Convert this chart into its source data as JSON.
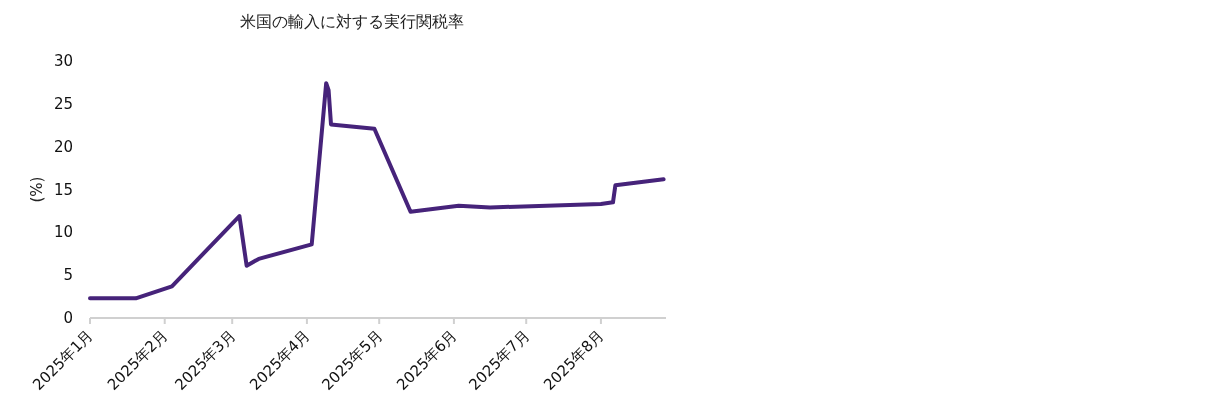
{
  "chart_data": {
    "type": "line",
    "title": "米国の輸入に対する実行関税率",
    "ylabel": "(%)",
    "x": [
      "2025-01-01",
      "2025-01-20",
      "2025-02-04",
      "2025-03-04",
      "2025-03-07",
      "2025-03-12",
      "2025-04-03",
      "2025-04-09",
      "2025-04-10",
      "2025-04-11",
      "2025-04-29",
      "2025-05-14",
      "2025-06-03",
      "2025-06-16",
      "2025-08-01",
      "2025-08-06",
      "2025-08-07",
      "2025-08-27"
    ],
    "series": [
      {
        "color": "#46237a",
        "values": [
          2.3,
          2.3,
          3.7,
          11.9,
          6.1,
          6.9,
          8.6,
          27.4,
          26.6,
          22.6,
          22.1,
          12.4,
          13.1,
          12.9,
          13.3,
          13.5,
          15.5,
          16.2
        ]
      }
    ],
    "xlim": [
      "2025-01-01",
      "2025-08-28"
    ],
    "xticks": [
      {
        "value": "2025-01-01",
        "label": "2025年1月"
      },
      {
        "value": "2025-02-01",
        "label": "2025年2月"
      },
      {
        "value": "2025-03-01",
        "label": "2025年3月"
      },
      {
        "value": "2025-04-01",
        "label": "2025年4月"
      },
      {
        "value": "2025-05-01",
        "label": "2025年5月"
      },
      {
        "value": "2025-06-01",
        "label": "2025年6月"
      },
      {
        "value": "2025-07-01",
        "label": "2025年7月"
      },
      {
        "value": "2025-08-01",
        "label": "2025年8月"
      }
    ],
    "ylim": [
      0,
      30
    ],
    "yticks": [
      0,
      5,
      10,
      15,
      20,
      25,
      30
    ],
    "grid": false,
    "marker": "none",
    "line_style": "solid"
  }
}
